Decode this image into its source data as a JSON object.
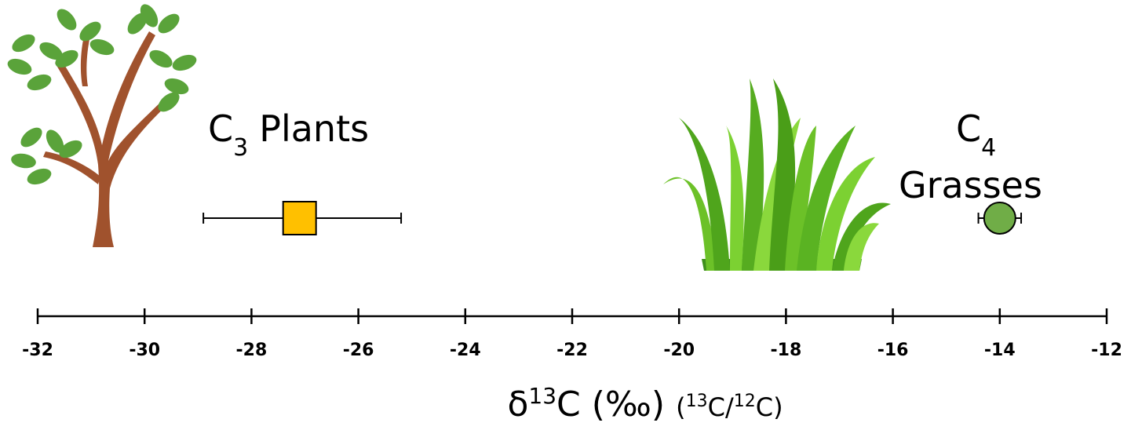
{
  "chart_data": {
    "type": "scatter",
    "xlim": [
      -32,
      -12
    ],
    "xticks": [
      -32,
      -30,
      -28,
      -26,
      -24,
      -22,
      -20,
      -18,
      -16,
      -14,
      -12
    ],
    "grid": false,
    "xlabel_parts": [
      "δ",
      "13",
      "C (‰)",
      "(",
      "13",
      "C/",
      "12",
      "C)"
    ],
    "series": [
      {
        "name": "C",
        "name_sub": "3",
        "name_rest": "Plants",
        "marker": "square",
        "color": "#ffc000",
        "x": -27.1,
        "x_low": -28.9,
        "x_high": -25.2
      },
      {
        "name": "C",
        "name_sub": "4",
        "name_rest": "Grasses",
        "marker": "circle",
        "color": "#70ad47",
        "x": -14.0,
        "x_low": -14.4,
        "x_high": -13.6
      }
    ]
  }
}
